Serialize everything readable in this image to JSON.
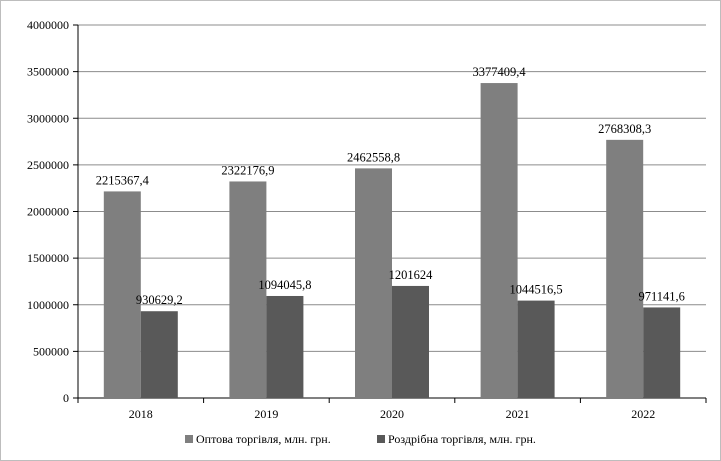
{
  "chart_data": {
    "type": "bar",
    "categories": [
      "2018",
      "2019",
      "2020",
      "2021",
      "2022"
    ],
    "series": [
      {
        "name": "Оптова торгівля, млн. грн.",
        "values": [
          2215367.4,
          2322176.9,
          2462558.8,
          3377409.4,
          2768308.3
        ],
        "labels": [
          "2215367,4",
          "2322176,9",
          "2462558,8",
          "3377409,4",
          "2768308,3"
        ],
        "color": "#7f7f7f"
      },
      {
        "name": "Роздрібна торгівля, млн. грн.",
        "values": [
          930629.2,
          1094045.8,
          1201624,
          1044516.5,
          971141.6
        ],
        "labels": [
          "930629,2",
          "1094045,8",
          "1201624",
          "1044516,5",
          "971141,6"
        ],
        "color": "#595959"
      }
    ],
    "yticks": [
      "0",
      "500000",
      "1000000",
      "1500000",
      "2000000",
      "2500000",
      "3000000",
      "3500000",
      "4000000"
    ],
    "ylim": [
      0,
      4000000
    ],
    "grid": true,
    "legend": "bottom",
    "title": "",
    "xlabel": "",
    "ylabel": ""
  }
}
